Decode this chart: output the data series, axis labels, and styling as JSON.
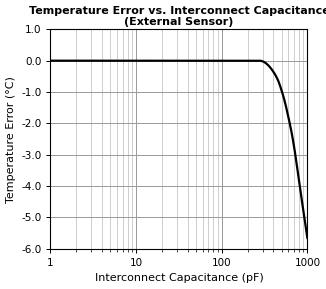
{
  "title_line1": "Temperature Error vs. Interconnect Capacitance",
  "title_line2": "(External Sensor)",
  "xlabel": "Interconnect Capacitance (pF)",
  "ylabel": "Temperature Error (°C)",
  "xlim": [
    1,
    1000
  ],
  "ylim": [
    -6.0,
    1.0
  ],
  "yticks": [
    1.0,
    0.0,
    -1.0,
    -2.0,
    -3.0,
    -4.0,
    -5.0,
    -6.0
  ],
  "ytick_labels": [
    "1.0",
    "0.0",
    "-1.0",
    "-2.0",
    "-3.0",
    "-4.0",
    "-5.0",
    "-6.0"
  ],
  "line_color": "#000000",
  "line_width": 1.6,
  "grid_major_color": "#999999",
  "grid_minor_color": "#bbbbbb",
  "background_color": "#ffffff",
  "title_fontsize": 8.0,
  "axis_label_fontsize": 8.0,
  "tick_fontsize": 7.5,
  "curve_points_x": [
    1,
    100,
    200,
    280,
    300,
    320,
    350,
    400,
    450,
    500,
    550,
    600,
    650,
    700,
    750,
    800,
    850,
    900,
    950,
    1000
  ],
  "curve_points_y": [
    0.0,
    0.0,
    0.0,
    0.0,
    -0.02,
    -0.06,
    -0.15,
    -0.35,
    -0.6,
    -0.95,
    -1.35,
    -1.8,
    -2.25,
    -2.75,
    -3.3,
    -3.85,
    -4.35,
    -4.8,
    -5.25,
    -5.65
  ]
}
